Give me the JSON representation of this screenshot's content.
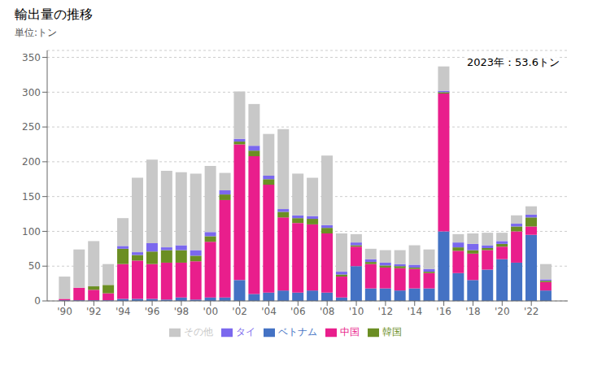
{
  "chart_data": {
    "type": "bar",
    "stacked": true,
    "title": "輸出量の推移",
    "subtitle": "単位:トン",
    "annotation": "2023年：53.6トン",
    "x": [
      1990,
      1991,
      1992,
      1993,
      1994,
      1995,
      1996,
      1997,
      1998,
      1999,
      2000,
      2001,
      2002,
      2003,
      2004,
      2005,
      2006,
      2007,
      2008,
      2009,
      2010,
      2011,
      2012,
      2013,
      2014,
      2015,
      2016,
      2017,
      2018,
      2019,
      2020,
      2021,
      2022,
      2023
    ],
    "series": [
      {
        "name": "ベトナム",
        "color": "#4472c4",
        "values": [
          1,
          1,
          1,
          1,
          3,
          3,
          3,
          2,
          5,
          2,
          5,
          5,
          30,
          10,
          12,
          15,
          12,
          15,
          12,
          5,
          50,
          18,
          18,
          15,
          18,
          18,
          100,
          40,
          30,
          45,
          60,
          55,
          95,
          15
        ]
      },
      {
        "name": "中国",
        "color": "#e91e8c",
        "values": [
          2,
          18,
          15,
          10,
          50,
          55,
          50,
          53,
          50,
          55,
          80,
          140,
          195,
          198,
          155,
          105,
          100,
          95,
          85,
          30,
          28,
          35,
          30,
          32,
          28,
          22,
          198,
          32,
          38,
          28,
          18,
          45,
          12,
          12
        ]
      },
      {
        "name": "韓国",
        "color": "#6b8e23",
        "values": [
          0,
          0,
          5,
          12,
          22,
          8,
          18,
          18,
          18,
          8,
          8,
          8,
          4,
          8,
          8,
          8,
          7,
          8,
          8,
          3,
          2,
          3,
          3,
          3,
          2,
          2,
          2,
          5,
          5,
          3,
          4,
          7,
          13,
          2
        ]
      },
      {
        "name": "タイ",
        "color": "#7b68ee",
        "values": [
          0,
          0,
          0,
          0,
          4,
          4,
          12,
          4,
          7,
          8,
          6,
          6,
          4,
          7,
          5,
          4,
          4,
          4,
          4,
          4,
          4,
          4,
          4,
          3,
          4,
          4,
          2,
          7,
          9,
          4,
          4,
          4,
          4,
          2
        ]
      },
      {
        "name": "その他",
        "color": "#c8c8c8",
        "values": [
          32,
          55,
          65,
          30,
          40,
          107,
          120,
          110,
          105,
          110,
          95,
          25,
          68,
          60,
          60,
          115,
          60,
          55,
          100,
          55,
          12,
          15,
          18,
          20,
          28,
          28,
          35,
          12,
          15,
          18,
          12,
          12,
          12,
          22
        ]
      }
    ],
    "xlim": [
      1988.8,
      2024.5
    ],
    "xticks": [
      {
        "value": 1990,
        "label": "'90"
      },
      {
        "value": 1992,
        "label": "'92"
      },
      {
        "value": 1994,
        "label": "'94"
      },
      {
        "value": 1996,
        "label": "'96"
      },
      {
        "value": 1998,
        "label": "'98"
      },
      {
        "value": 2000,
        "label": "'00"
      },
      {
        "value": 2002,
        "label": "'02"
      },
      {
        "value": 2004,
        "label": "'04"
      },
      {
        "value": 2006,
        "label": "'06"
      },
      {
        "value": 2008,
        "label": "'08"
      },
      {
        "value": 2010,
        "label": "'10"
      },
      {
        "value": 2012,
        "label": "'12"
      },
      {
        "value": 2014,
        "label": "'14"
      },
      {
        "value": 2016,
        "label": "'16"
      },
      {
        "value": 2018,
        "label": "'18"
      },
      {
        "value": 2020,
        "label": "'20"
      },
      {
        "value": 2022,
        "label": "'22"
      }
    ],
    "ylim": [
      0,
      360
    ],
    "yticks": [
      0,
      50,
      100,
      150,
      200,
      250,
      300,
      350
    ],
    "grid": true,
    "legend": "bottom"
  }
}
